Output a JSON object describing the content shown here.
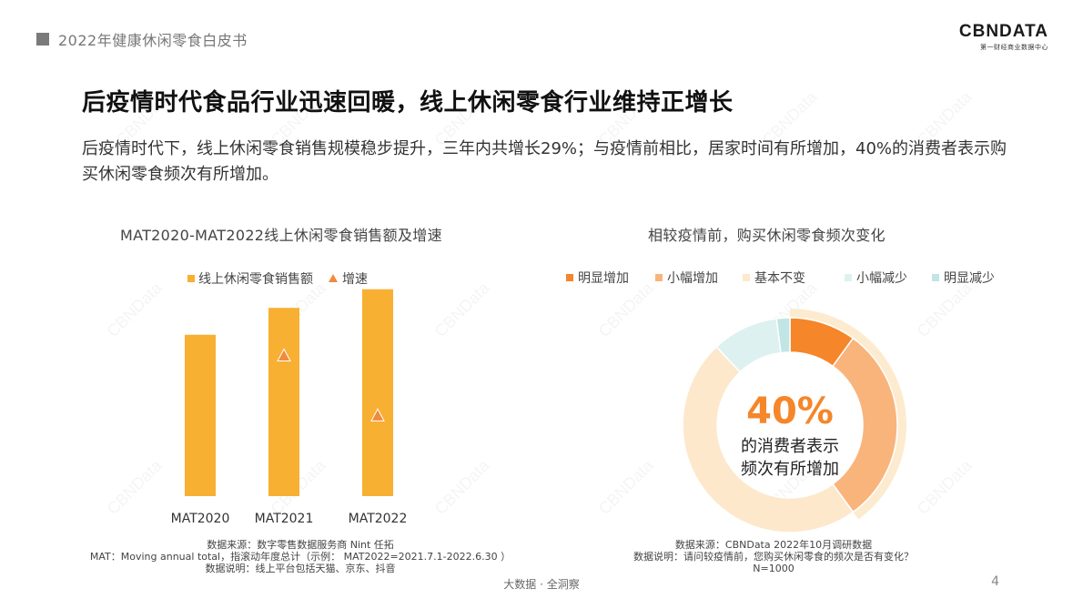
{
  "header": {
    "title": "2022年健康休闲零食白皮书"
  },
  "logo": {
    "main": "CBNDATA",
    "sub": "第一财经商业数据中心"
  },
  "page": {
    "title": "后疫情时代食品行业迅速回暖，线上休闲零食行业维持正增长",
    "summary": "后疫情时代下，线上休闲零食销售规模稳步提升，三年内共增长29%；与疫情前相比，居家时间有所增加，40%的消费者表示购买休闲零食频次有所增加。"
  },
  "chart_data": [
    {
      "type": "bar",
      "title": "MAT2020-MAT2022线上休闲零食销售额及增速",
      "categories": [
        "MAT2020",
        "MAT2021",
        "MAT2022"
      ],
      "series": [
        {
          "name": "线上休闲零食销售额",
          "type": "bar",
          "values": [
            0.78,
            0.91,
            1.0
          ]
        },
        {
          "name": "增速",
          "type": "scatter",
          "marker": "triangle",
          "values": [
            null,
            0.68,
            0.39
          ]
        }
      ],
      "ylim": [
        0,
        1.1
      ],
      "legend": "top",
      "grid": false,
      "colors": {
        "bar": "#f7b032",
        "marker": "#f08a3c",
        "marker_edge": "#ffffff"
      }
    },
    {
      "type": "pie",
      "title": "相较疫情前，购买休闲零食频次变化",
      "categories": [
        "明显增加",
        "小幅增加",
        "基本不变",
        "小幅减少",
        "明显减少"
      ],
      "values": [
        10,
        30,
        48,
        10,
        2
      ],
      "colors": [
        "#f5862a",
        "#f9b47c",
        "#fde8cc",
        "#ddf1f0",
        "#c1e5e4"
      ],
      "legend": "top",
      "center_value": "40%",
      "center_label_line1": "的消费者表示",
      "center_label_line2": "频次有所增加",
      "highlight_color": "#fdebd0"
    }
  ],
  "notes": {
    "left": [
      "数据来源：数字零售数据服务商 Nint 任拓",
      "MAT：Moving annual total，指滚动年度总计（示例： MAT2022=2021.7.1-2022.6.30 ）",
      "数据说明：线上平台包括天猫、京东、抖音"
    ],
    "right": [
      "数据来源：CBNData 2022年10月调研数据",
      "数据说明：请问较疫情前，您购买休闲零食的频次是否有变化？",
      "N=1000"
    ]
  },
  "footer": {
    "center": "大数据 · 全洞察",
    "page_number": "4"
  }
}
